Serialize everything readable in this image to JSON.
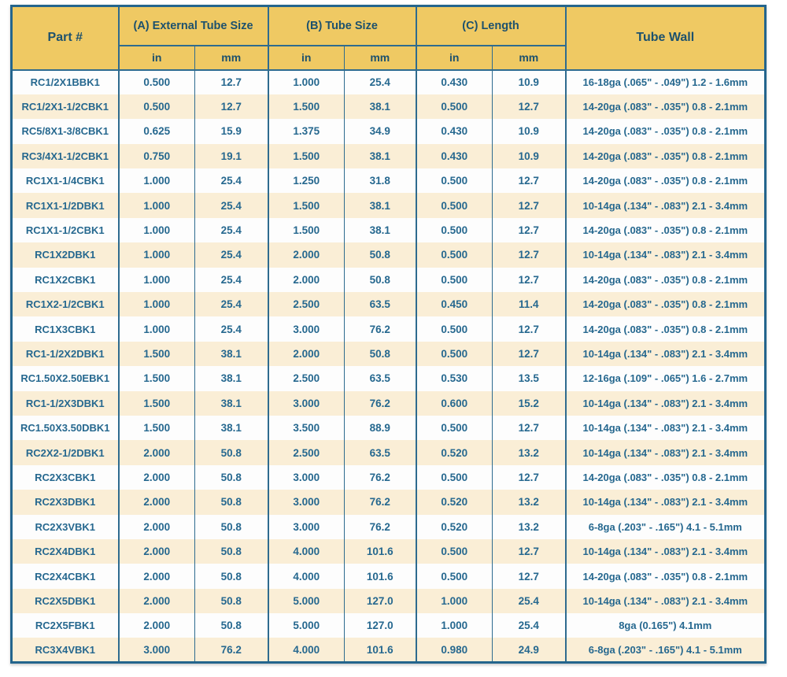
{
  "colors": {
    "header_bg": "#efc963",
    "row_alt_bg": "#faeed6",
    "row_bg": "#fdfdfd",
    "grid_line": "#2e6b8f",
    "outer_border": "#24658d",
    "header_text": "#1d516d",
    "data_text": "#26688f"
  },
  "chart_data": {
    "type": "table",
    "header": {
      "part": "Part #",
      "group_a": "(A) External Tube Size",
      "group_b": "(B) Tube Size",
      "group_c": "(C) Length",
      "tube_wall": "Tube Wall",
      "unit_in": "in",
      "unit_mm": "mm"
    },
    "rows": [
      {
        "part": "RC1/2X1BBK1",
        "a_in": "0.500",
        "a_mm": "12.7",
        "b_in": "1.000",
        "b_mm": "25.4",
        "c_in": "0.430",
        "c_mm": "10.9",
        "wall": "16-18ga (.065\" - .049\") 1.2 - 1.6mm"
      },
      {
        "part": "RC1/2X1-1/2CBK1",
        "a_in": "0.500",
        "a_mm": "12.7",
        "b_in": "1.500",
        "b_mm": "38.1",
        "c_in": "0.500",
        "c_mm": "12.7",
        "wall": "14-20ga (.083\" - .035\") 0.8 - 2.1mm"
      },
      {
        "part": "RC5/8X1-3/8CBK1",
        "a_in": "0.625",
        "a_mm": "15.9",
        "b_in": "1.375",
        "b_mm": "34.9",
        "c_in": "0.430",
        "c_mm": "10.9",
        "wall": "14-20ga (.083\" - .035\") 0.8 - 2.1mm"
      },
      {
        "part": "RC3/4X1-1/2CBK1",
        "a_in": "0.750",
        "a_mm": "19.1",
        "b_in": "1.500",
        "b_mm": "38.1",
        "c_in": "0.430",
        "c_mm": "10.9",
        "wall": "14-20ga (.083\" - .035\") 0.8 - 2.1mm"
      },
      {
        "part": "RC1X1-1/4CBK1",
        "a_in": "1.000",
        "a_mm": "25.4",
        "b_in": "1.250",
        "b_mm": "31.8",
        "c_in": "0.500",
        "c_mm": "12.7",
        "wall": "14-20ga (.083\" - .035\") 0.8 - 2.1mm"
      },
      {
        "part": "RC1X1-1/2DBK1",
        "a_in": "1.000",
        "a_mm": "25.4",
        "b_in": "1.500",
        "b_mm": "38.1",
        "c_in": "0.500",
        "c_mm": "12.7",
        "wall": "10-14ga (.134\" - .083\") 2.1 - 3.4mm"
      },
      {
        "part": "RC1X1-1/2CBK1",
        "a_in": "1.000",
        "a_mm": "25.4",
        "b_in": "1.500",
        "b_mm": "38.1",
        "c_in": "0.500",
        "c_mm": "12.7",
        "wall": "14-20ga (.083\" - .035\") 0.8 - 2.1mm"
      },
      {
        "part": "RC1X2DBK1",
        "a_in": "1.000",
        "a_mm": "25.4",
        "b_in": "2.000",
        "b_mm": "50.8",
        "c_in": "0.500",
        "c_mm": "12.7",
        "wall": "10-14ga (.134\" - .083\") 2.1 - 3.4mm"
      },
      {
        "part": "RC1X2CBK1",
        "a_in": "1.000",
        "a_mm": "25.4",
        "b_in": "2.000",
        "b_mm": "50.8",
        "c_in": "0.500",
        "c_mm": "12.7",
        "wall": "14-20ga (.083\" - .035\") 0.8 - 2.1mm"
      },
      {
        "part": "RC1X2-1/2CBK1",
        "a_in": "1.000",
        "a_mm": "25.4",
        "b_in": "2.500",
        "b_mm": "63.5",
        "c_in": "0.450",
        "c_mm": "11.4",
        "wall": "14-20ga (.083\" - .035\") 0.8 - 2.1mm"
      },
      {
        "part": "RC1X3CBK1",
        "a_in": "1.000",
        "a_mm": "25.4",
        "b_in": "3.000",
        "b_mm": "76.2",
        "c_in": "0.500",
        "c_mm": "12.7",
        "wall": "14-20ga (.083\" - .035\") 0.8 - 2.1mm"
      },
      {
        "part": "RC1-1/2X2DBK1",
        "a_in": "1.500",
        "a_mm": "38.1",
        "b_in": "2.000",
        "b_mm": "50.8",
        "c_in": "0.500",
        "c_mm": "12.7",
        "wall": "10-14ga (.134\" - .083\") 2.1 - 3.4mm"
      },
      {
        "part": "RC1.50X2.50EBK1",
        "a_in": "1.500",
        "a_mm": "38.1",
        "b_in": "2.500",
        "b_mm": "63.5",
        "c_in": "0.530",
        "c_mm": "13.5",
        "wall": "12-16ga (.109\" - .065\") 1.6 - 2.7mm"
      },
      {
        "part": "RC1-1/2X3DBK1",
        "a_in": "1.500",
        "a_mm": "38.1",
        "b_in": "3.000",
        "b_mm": "76.2",
        "c_in": "0.600",
        "c_mm": "15.2",
        "wall": "10-14ga (.134\" - .083\") 2.1 - 3.4mm"
      },
      {
        "part": "RC1.50X3.50DBK1",
        "a_in": "1.500",
        "a_mm": "38.1",
        "b_in": "3.500",
        "b_mm": "88.9",
        "c_in": "0.500",
        "c_mm": "12.7",
        "wall": "10-14ga (.134\" - .083\") 2.1 - 3.4mm"
      },
      {
        "part": "RC2X2-1/2DBK1",
        "a_in": "2.000",
        "a_mm": "50.8",
        "b_in": "2.500",
        "b_mm": "63.5",
        "c_in": "0.520",
        "c_mm": "13.2",
        "wall": "10-14ga (.134\" - .083\") 2.1 - 3.4mm"
      },
      {
        "part": "RC2X3CBK1",
        "a_in": "2.000",
        "a_mm": "50.8",
        "b_in": "3.000",
        "b_mm": "76.2",
        "c_in": "0.500",
        "c_mm": "12.7",
        "wall": "14-20ga (.083\" - .035\") 0.8 - 2.1mm"
      },
      {
        "part": "RC2X3DBK1",
        "a_in": "2.000",
        "a_mm": "50.8",
        "b_in": "3.000",
        "b_mm": "76.2",
        "c_in": "0.520",
        "c_mm": "13.2",
        "wall": "10-14ga (.134\" - .083\") 2.1 - 3.4mm"
      },
      {
        "part": "RC2X3VBK1",
        "a_in": "2.000",
        "a_mm": "50.8",
        "b_in": "3.000",
        "b_mm": "76.2",
        "c_in": "0.520",
        "c_mm": "13.2",
        "wall": "6-8ga (.203\" - .165\") 4.1 - 5.1mm"
      },
      {
        "part": "RC2X4DBK1",
        "a_in": "2.000",
        "a_mm": "50.8",
        "b_in": "4.000",
        "b_mm": "101.6",
        "c_in": "0.500",
        "c_mm": "12.7",
        "wall": "10-14ga (.134\" - .083\") 2.1 - 3.4mm"
      },
      {
        "part": "RC2X4CBK1",
        "a_in": "2.000",
        "a_mm": "50.8",
        "b_in": "4.000",
        "b_mm": "101.6",
        "c_in": "0.500",
        "c_mm": "12.7",
        "wall": "14-20ga (.083\" - .035\") 0.8 - 2.1mm"
      },
      {
        "part": "RC2X5DBK1",
        "a_in": "2.000",
        "a_mm": "50.8",
        "b_in": "5.000",
        "b_mm": "127.0",
        "c_in": "1.000",
        "c_mm": "25.4",
        "wall": "10-14ga (.134\" - .083\") 2.1 - 3.4mm"
      },
      {
        "part": "RC2X5FBK1",
        "a_in": "2.000",
        "a_mm": "50.8",
        "b_in": "5.000",
        "b_mm": "127.0",
        "c_in": "1.000",
        "c_mm": "25.4",
        "wall": "8ga (0.165\") 4.1mm"
      },
      {
        "part": "RC3X4VBK1",
        "a_in": "3.000",
        "a_mm": "76.2",
        "b_in": "4.000",
        "b_mm": "101.6",
        "c_in": "0.980",
        "c_mm": "24.9",
        "wall": "6-8ga (.203\" - .165\") 4.1 - 5.1mm"
      }
    ]
  }
}
